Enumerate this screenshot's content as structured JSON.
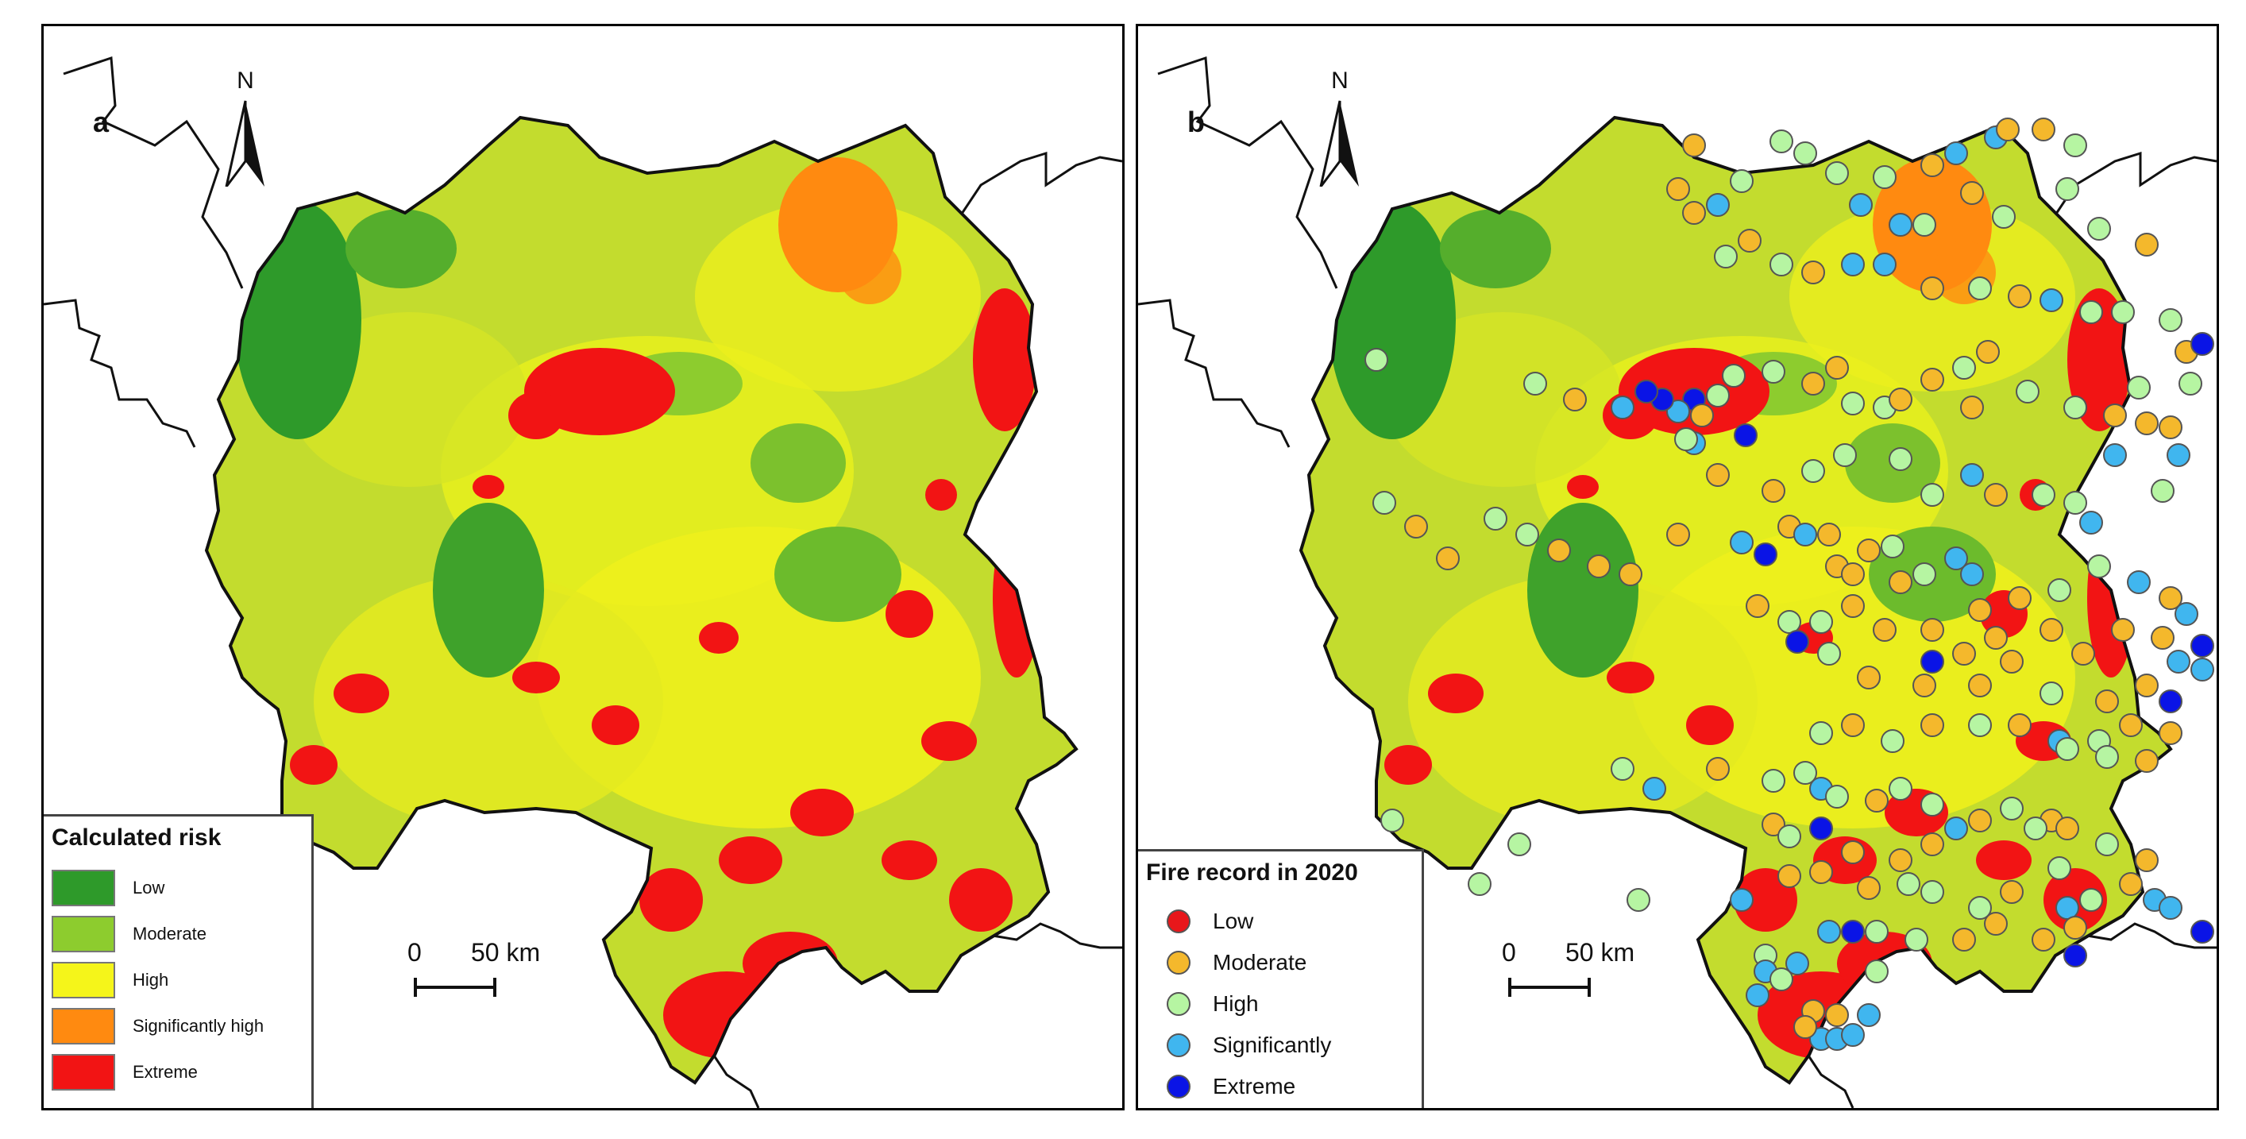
{
  "colors": {
    "low": "#2e9a2a",
    "moderate": "#8dcc2e",
    "high": "#f5f51a",
    "significantly_high": "#ff8a10",
    "extreme": "#f21414",
    "fire_low": "#e8171b",
    "fire_moderate": "#f4b82c",
    "fire_high": "#b6f5a2",
    "fire_significantly": "#40b6ef",
    "fire_extreme": "#0a14e6"
  },
  "panel_a": {
    "label": "a",
    "north": "N",
    "scale": {
      "zero": "0",
      "distance": "50 km"
    },
    "legend": {
      "title": "Calculated risk",
      "items": [
        {
          "label": "Low",
          "color": "#2e9a2a"
        },
        {
          "label": "Moderate",
          "color": "#8dcc2e"
        },
        {
          "label": "High",
          "color": "#f5f51a"
        },
        {
          "label": "Significantly high",
          "color": "#ff8a10"
        },
        {
          "label": "Extreme",
          "color": "#f21414"
        }
      ]
    }
  },
  "panel_b": {
    "label": "b",
    "north": "N",
    "scale": {
      "zero": "0",
      "distance": "50 km"
    },
    "legend": {
      "title": "Fire record in 2020",
      "items": [
        {
          "label": "Low",
          "color": "#e8171b"
        },
        {
          "label": "Moderate",
          "color": "#f4b82c"
        },
        {
          "label": "High",
          "color": "#b6f5a2"
        },
        {
          "label": "Significantly",
          "color": "#40b6ef"
        },
        {
          "label": "Extreme",
          "color": "#0a14e6"
        }
      ]
    }
  }
}
